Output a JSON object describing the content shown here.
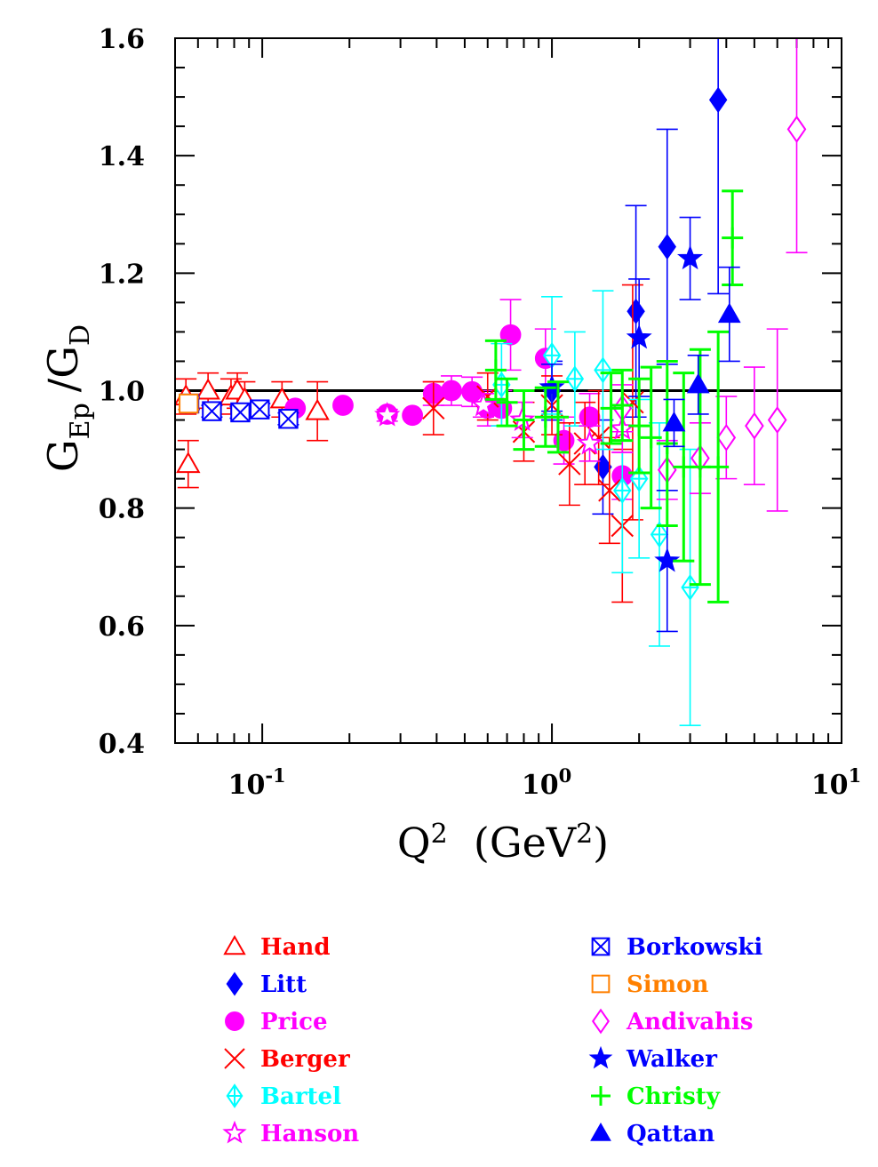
{
  "chart_data": {
    "type": "scatter",
    "title": "",
    "xscale": "log",
    "xlim": [
      0.05,
      10
    ],
    "ylim": [
      0.4,
      1.6
    ],
    "xlabel": {
      "base": "Q",
      "sup": "2",
      "rest": "  (GeV",
      "sup2": "2",
      "close": ")"
    },
    "ylabel": {
      "g1": "G",
      "sub1": "Ep",
      "slash": "/",
      "g2": "G",
      "sub2": "D"
    },
    "xtick_labels": [
      {
        "value": 0.1,
        "base": "10",
        "exp": "-1"
      },
      {
        "value": 1,
        "base": "10",
        "exp": "0"
      },
      {
        "value": 10,
        "base": "10",
        "exp": "1"
      }
    ],
    "ytick_labels": [
      "0.4",
      "0.6",
      "0.8",
      "1.0",
      "1.2",
      "1.4",
      "1.6"
    ],
    "reference_line": 1.0,
    "legend_position": "below plot, two columns",
    "series": [
      {
        "name": "Hand",
        "color": "#ff0000",
        "marker": "triangle-open",
        "x": [
          0.0545,
          0.0555,
          0.065,
          0.078,
          0.082,
          0.087,
          0.117,
          0.155
        ],
        "y": [
          0.99,
          0.875,
          1.0,
          0.99,
          1.0,
          0.985,
          0.985,
          0.965
        ],
        "err": [
          0.03,
          0.04,
          0.03,
          0.03,
          0.03,
          0.03,
          0.03,
          0.05
        ]
      },
      {
        "name": "Litt",
        "color": "#0000ff",
        "marker": "diamond-filled",
        "x": [
          1.0,
          1.5,
          1.95,
          2.5,
          3.75
        ],
        "y": [
          1.0,
          0.87,
          1.135,
          1.245,
          1.495
        ],
        "err": [
          0.05,
          0.08,
          0.18,
          0.2,
          0.33
        ]
      },
      {
        "name": "Price",
        "color": "#ff00ff",
        "marker": "circle-filled",
        "x": [
          0.13,
          0.19,
          0.27,
          0.33,
          0.39,
          0.45,
          0.53,
          0.6,
          0.67,
          0.72,
          0.95,
          1.1,
          1.35,
          1.75
        ],
        "y": [
          0.97,
          0.975,
          0.96,
          0.958,
          0.995,
          1.0,
          0.998,
          0.97,
          0.97,
          1.095,
          1.055,
          0.915,
          0.955,
          0.855
        ],
        "err": [
          0,
          0,
          0,
          0,
          0.02,
          0.025,
          0.025,
          0.03,
          0.03,
          0.06,
          0.05,
          0.04,
          0.04,
          0.04
        ]
      },
      {
        "name": "Berger",
        "color": "#ff0000",
        "marker": "cross",
        "x": [
          0.39,
          0.6,
          0.8,
          1.0,
          1.15,
          1.3,
          1.45,
          1.58,
          1.75,
          1.9
        ],
        "y": [
          0.97,
          0.99,
          0.93,
          0.975,
          0.875,
          0.91,
          0.92,
          0.83,
          0.77,
          0.98
        ],
        "err": [
          0.045,
          0.04,
          0.05,
          0.05,
          0.07,
          0.07,
          0.08,
          0.09,
          0.13,
          0.2
        ]
      },
      {
        "name": "Bartel",
        "color": "#00ffff",
        "marker": "diamond-cross",
        "x": [
          0.67,
          1.0,
          1.2,
          1.5,
          1.75,
          2.0,
          2.35,
          3.0
        ],
        "y": [
          1.01,
          1.06,
          1.02,
          1.035,
          0.83,
          0.85,
          0.755,
          0.665
        ],
        "err": [
          0.07,
          0.1,
          0.08,
          0.135,
          0.14,
          0.135,
          0.19,
          0.235
        ]
      },
      {
        "name": "Hanson",
        "color": "#ff00ff",
        "marker": "star-open",
        "x": [
          0.27,
          0.58,
          0.79,
          1.35,
          1.75
        ],
        "y": [
          0.958,
          0.975,
          0.95,
          0.91,
          0.935
        ],
        "err": [
          0.01,
          0.02,
          0.03,
          0.03,
          0.04
        ]
      },
      {
        "name": "Borkowski",
        "color": "#0000ff",
        "marker": "square-cross",
        "x": [
          0.056,
          0.067,
          0.084,
          0.098,
          0.123
        ],
        "y": [
          0.978,
          0.965,
          0.963,
          0.968,
          0.952
        ],
        "err": [
          0.01,
          0.01,
          0.01,
          0.01,
          0.01
        ]
      },
      {
        "name": "Simon",
        "color": "#ff8000",
        "marker": "square-open",
        "x": [
          0.0557
        ],
        "y": [
          0.978
        ],
        "err": [
          0.01
        ]
      },
      {
        "name": "Andivahis",
        "color": "#ff00ff",
        "marker": "diamond-open",
        "x": [
          1.75,
          2.5,
          3.25,
          4.0,
          5.0,
          6.0,
          7.0
        ],
        "y": [
          0.97,
          0.865,
          0.885,
          0.92,
          0.94,
          0.95,
          1.445
        ],
        "err": [
          0.04,
          0.05,
          0.06,
          0.07,
          0.1,
          0.155,
          0.21
        ]
      },
      {
        "name": "Walker",
        "color": "#0000ff",
        "marker": "star-filled",
        "x": [
          1.0,
          2.0,
          2.5,
          3.0
        ],
        "y": [
          1.005,
          1.09,
          0.71,
          1.225
        ],
        "err": [
          0.04,
          0.1,
          0.12,
          0.07
        ]
      },
      {
        "name": "Christy",
        "color": "#00ff00",
        "marker": "plus",
        "x": [
          0.64,
          0.7,
          0.8,
          0.95,
          1.05,
          1.6,
          1.75,
          2.0,
          2.2,
          2.5,
          2.85,
          3.25,
          3.75,
          4.2
        ],
        "y": [
          1.035,
          0.98,
          0.95,
          0.955,
          0.955,
          0.97,
          0.975,
          0.94,
          0.92,
          0.91,
          0.87,
          0.87,
          0.87,
          1.26
        ],
        "err": [
          0.05,
          0.04,
          0.05,
          0.05,
          0.06,
          0.06,
          0.06,
          0.08,
          0.12,
          0.14,
          0.16,
          0.2,
          0.23,
          0.08
        ]
      },
      {
        "name": "Qattan",
        "color": "#0000ff",
        "marker": "triangle-filled",
        "x": [
          2.64,
          3.2,
          4.1
        ],
        "y": [
          0.945,
          1.01,
          1.13
        ],
        "err": [
          0.04,
          0.05,
          0.08
        ]
      }
    ]
  }
}
